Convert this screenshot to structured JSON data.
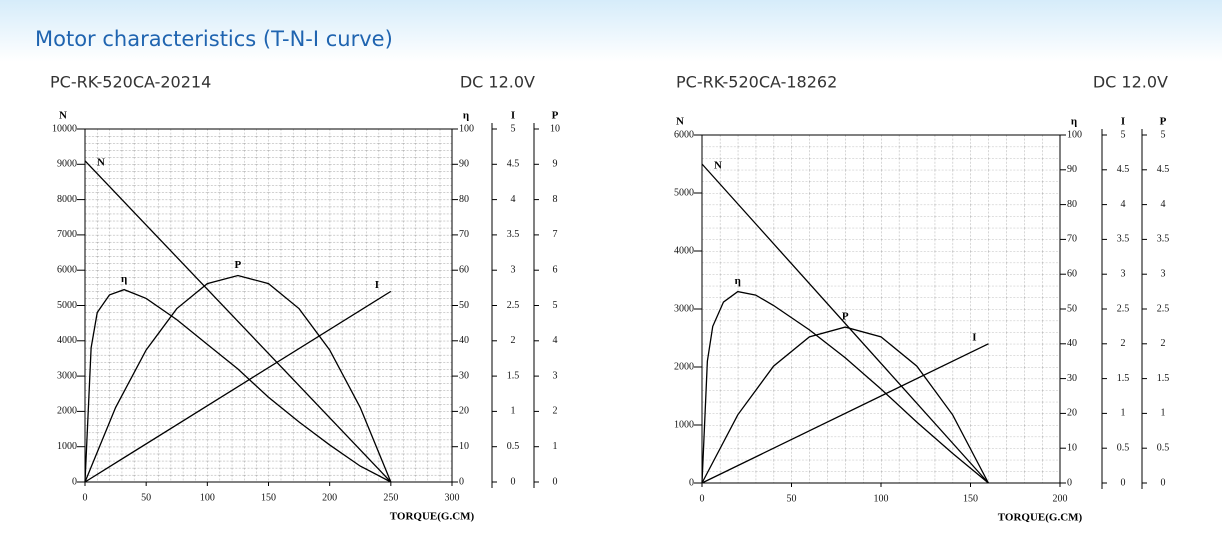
{
  "header": {
    "title": "Motor characteristics (T-N-I curve)"
  },
  "chart_data": [
    {
      "type": "line",
      "title": "PC-RK-520CA-20214",
      "subtitle": "DC 12.0V",
      "xlabel": "TORQUE(G.CM)",
      "ylabel": "N",
      "y2label": "η",
      "y3label": "I",
      "y4label": "P",
      "xlim": [
        0,
        300
      ],
      "xticks": [
        0,
        50,
        100,
        150,
        200,
        250,
        300
      ],
      "ylim": [
        0,
        10000
      ],
      "yticks": [
        0,
        1000,
        2000,
        3000,
        4000,
        5000,
        6000,
        7000,
        8000,
        9000,
        10000
      ],
      "y2lim": [
        0,
        100
      ],
      "y2ticks": [
        0,
        10,
        20,
        30,
        40,
        50,
        60,
        70,
        80,
        90,
        100
      ],
      "y3lim": [
        0,
        5
      ],
      "y3ticks": [
        0,
        0.5,
        1,
        1.5,
        2,
        2.5,
        3,
        3.5,
        4,
        4.5,
        5
      ],
      "y4lim": [
        0,
        10
      ],
      "y4ticks": [
        0,
        1,
        2,
        3,
        4,
        5,
        6,
        7,
        8,
        9,
        10
      ],
      "grid": true,
      "series": [
        {
          "name": "N",
          "color": "#000000",
          "axis": "y",
          "x": [
            0,
            250
          ],
          "values": [
            9100,
            0
          ]
        },
        {
          "name": "η",
          "color": "#000000",
          "axis": "y2",
          "x": [
            0,
            5,
            10,
            20,
            32,
            50,
            75,
            100,
            125,
            150,
            175,
            200,
            225,
            250
          ],
          "values": [
            0,
            38,
            48,
            53,
            54.5,
            52,
            46,
            39,
            32,
            24,
            17,
            10.5,
            4.5,
            0
          ]
        },
        {
          "name": "P",
          "color": "#000000",
          "axis": "y4",
          "x": [
            0,
            25,
            50,
            75,
            100,
            125,
            150,
            175,
            200,
            225,
            250
          ],
          "values": [
            0,
            2.11,
            3.74,
            4.91,
            5.62,
            5.85,
            5.62,
            4.91,
            3.74,
            2.11,
            0
          ]
        },
        {
          "name": "I",
          "color": "#000000",
          "axis": "y3",
          "x": [
            0,
            250
          ],
          "values": [
            0,
            2.7
          ]
        }
      ]
    },
    {
      "type": "line",
      "title": "PC-RK-520CA-18262",
      "subtitle": "DC 12.0V",
      "xlabel": "TORQUE(G.CM)",
      "ylabel": "N",
      "y2label": "η",
      "y3label": "I",
      "y4label": "P",
      "xlim": [
        0,
        200
      ],
      "xticks": [
        0,
        50,
        100,
        150,
        200
      ],
      "ylim": [
        0,
        6000
      ],
      "yticks": [
        0,
        1000,
        2000,
        3000,
        4000,
        5000,
        6000
      ],
      "y2lim": [
        0,
        100
      ],
      "y2ticks": [
        0,
        10,
        20,
        30,
        40,
        50,
        60,
        70,
        80,
        90,
        100
      ],
      "y3lim": [
        0,
        5
      ],
      "y3ticks": [
        0,
        0.5,
        1,
        1.5,
        2,
        2.5,
        3,
        3.5,
        4,
        4.5,
        5
      ],
      "y4lim": [
        0,
        5
      ],
      "y4ticks": [
        0,
        0.5,
        1,
        1.5,
        2,
        2.5,
        3,
        3.5,
        4,
        4.5,
        5
      ],
      "grid": true,
      "series": [
        {
          "name": "N",
          "color": "#000000",
          "axis": "y",
          "x": [
            0,
            160
          ],
          "values": [
            5500,
            0
          ]
        },
        {
          "name": "η",
          "color": "#000000",
          "axis": "y2",
          "x": [
            0,
            3,
            6,
            12,
            20,
            30,
            40,
            60,
            80,
            100,
            120,
            140,
            160
          ],
          "values": [
            0,
            35,
            45,
            52,
            55,
            54,
            51,
            44,
            36,
            27,
            17.5,
            8.5,
            0
          ]
        },
        {
          "name": "P",
          "color": "#000000",
          "axis": "y4",
          "x": [
            0,
            20,
            40,
            60,
            80,
            100,
            120,
            140,
            160
          ],
          "values": [
            0,
            0.98,
            1.68,
            2.1,
            2.24,
            2.1,
            1.68,
            0.98,
            0
          ]
        },
        {
          "name": "I",
          "color": "#000000",
          "axis": "y3",
          "x": [
            0,
            160
          ],
          "values": [
            0,
            2.0
          ]
        }
      ]
    }
  ]
}
